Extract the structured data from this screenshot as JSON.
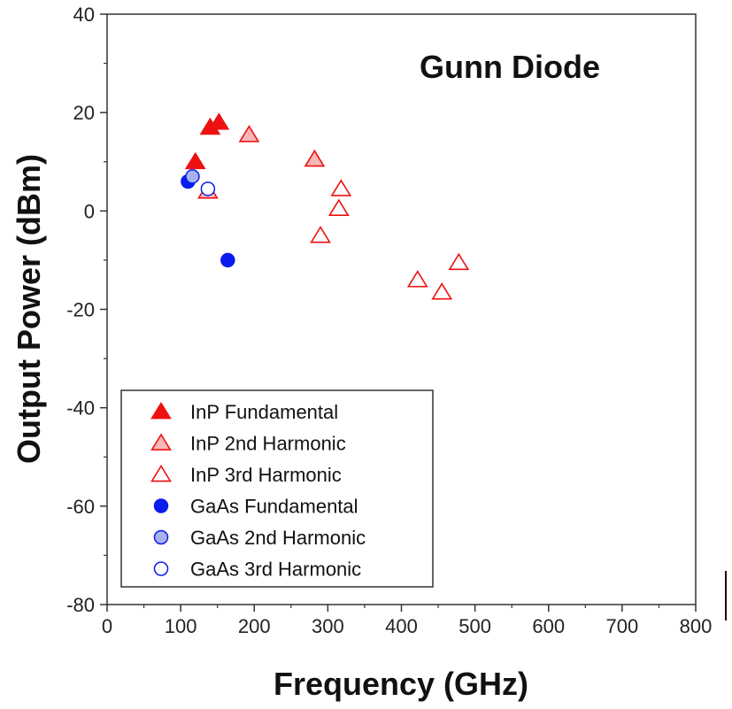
{
  "chart_data": {
    "type": "scatter",
    "title": "Gunn Diode",
    "xlabel": "Frequency (GHz)",
    "ylabel": "Output Power (dBm)",
    "xlim": [
      0,
      800
    ],
    "ylim": [
      -80,
      40
    ],
    "xticks": [
      0,
      100,
      200,
      300,
      400,
      500,
      600,
      700,
      800
    ],
    "yticks": [
      -80,
      -60,
      -40,
      -20,
      0,
      20,
      40
    ],
    "grid": false,
    "legend_position": "bottom-left",
    "series": [
      {
        "name": "InP Fundamental",
        "marker": "triangle-filled",
        "color": "#ee1111",
        "points": [
          [
            120,
            10
          ],
          [
            140,
            17
          ],
          [
            152,
            18
          ]
        ]
      },
      {
        "name": "InP 2nd Harmonic",
        "marker": "triangle-light",
        "color": "#ee1111",
        "fill": "#f7b8b8",
        "points": [
          [
            137,
            4
          ],
          [
            193,
            15.5
          ],
          [
            282,
            10.5
          ]
        ]
      },
      {
        "name": "InP 3rd Harmonic",
        "marker": "triangle-open",
        "color": "#ee1111",
        "points": [
          [
            290,
            -5
          ],
          [
            315,
            0.5
          ],
          [
            318,
            4.5
          ],
          [
            422,
            -14
          ],
          [
            455,
            -16.5
          ],
          [
            478,
            -10.5
          ]
        ]
      },
      {
        "name": "GaAs Fundamental",
        "marker": "circle-filled",
        "color": "#0a1cf0",
        "points": [
          [
            110,
            6
          ],
          [
            164,
            -10
          ]
        ]
      },
      {
        "name": "GaAs 2nd Harmonic",
        "marker": "circle-light",
        "color": "#0a1cf0",
        "fill": "#a8b2ef",
        "points": [
          [
            116,
            7
          ]
        ]
      },
      {
        "name": "GaAs 3rd Harmonic",
        "marker": "circle-open",
        "color": "#0a1cf0",
        "points": [
          [
            137,
            4.5
          ]
        ]
      }
    ]
  }
}
